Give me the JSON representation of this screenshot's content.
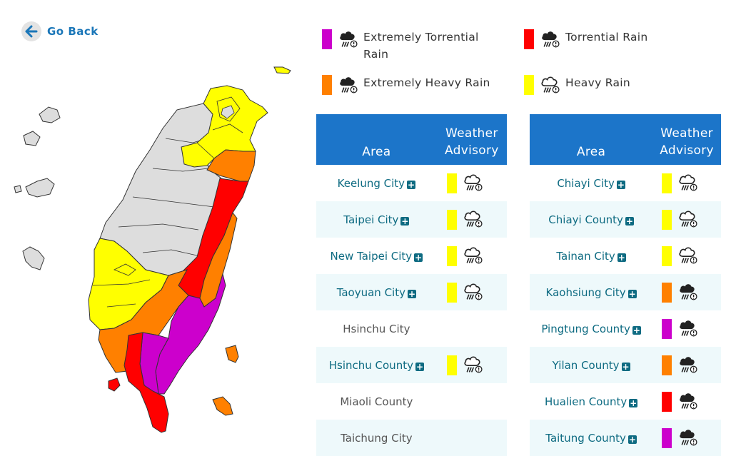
{
  "nav": {
    "go_back_label": "Go Back"
  },
  "colors": {
    "extremely_torrential": "#cc00cc",
    "torrential": "#ff0000",
    "extremely_heavy": "#ff8000",
    "heavy": "#ffff00",
    "no_advisory": "#dddddd",
    "header_blue": "#1c75c9",
    "link_teal": "#0e6b82"
  },
  "legend": [
    {
      "level": "extremely_torrential",
      "label_line1": "Extremely Torrential",
      "label_line2": "Rain",
      "icon": "rain-cloud-icon"
    },
    {
      "level": "torrential",
      "label_line1": "Torrential Rain",
      "label_line2": "",
      "icon": "rain-cloud-icon"
    },
    {
      "level": "extremely_heavy",
      "label_line1": "Extremely Heavy Rain",
      "label_line2": "",
      "icon": "rain-cloud-icon"
    },
    {
      "level": "heavy",
      "label_line1": "Heavy Rain",
      "label_line2": "",
      "icon": "rain-cloud-outline-icon"
    }
  ],
  "table_headers": {
    "area": "Area",
    "advisory_line1": "Weather",
    "advisory_line2": "Advisory"
  },
  "table_left": [
    {
      "area": "Keelung City",
      "advisory": "heavy",
      "expandable": true
    },
    {
      "area": "Taipei City",
      "advisory": "heavy",
      "expandable": true
    },
    {
      "area": "New Taipei City",
      "advisory": "heavy",
      "expandable": true
    },
    {
      "area": "Taoyuan City",
      "advisory": "heavy",
      "expandable": true
    },
    {
      "area": "Hsinchu City",
      "advisory": "",
      "expandable": false
    },
    {
      "area": "Hsinchu County",
      "advisory": "heavy",
      "expandable": true
    },
    {
      "area": "Miaoli County",
      "advisory": "",
      "expandable": false
    },
    {
      "area": "Taichung City",
      "advisory": "",
      "expandable": false
    }
  ],
  "table_right": [
    {
      "area": "Chiayi City",
      "advisory": "heavy",
      "expandable": true
    },
    {
      "area": "Chiayi County",
      "advisory": "heavy",
      "expandable": true
    },
    {
      "area": "Tainan City",
      "advisory": "heavy",
      "expandable": true
    },
    {
      "area": "Kaohsiung City",
      "advisory": "extremely_heavy",
      "expandable": true
    },
    {
      "area": "Pingtung County",
      "advisory": "extremely_torrential",
      "expandable": true
    },
    {
      "area": "Yilan County",
      "advisory": "extremely_heavy",
      "expandable": true
    },
    {
      "area": "Hualien County",
      "advisory": "torrential",
      "expandable": true
    },
    {
      "area": "Taitung County",
      "advisory": "extremely_torrential",
      "expandable": true
    }
  ]
}
